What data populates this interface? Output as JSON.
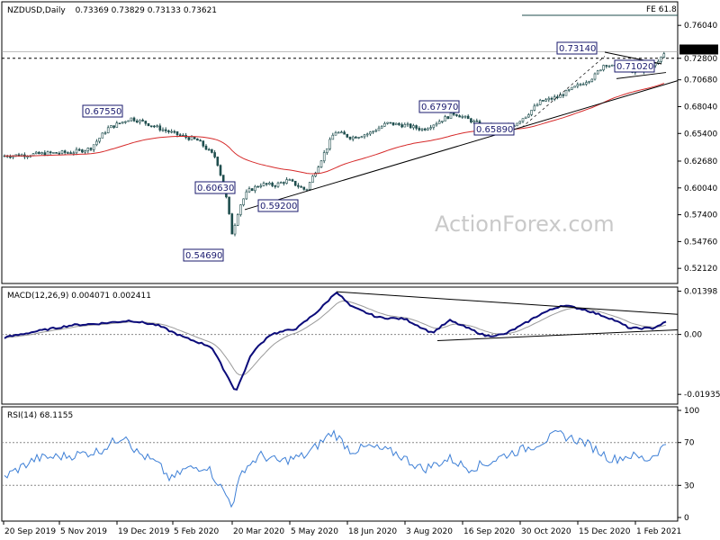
{
  "header": {
    "symbol": "NZDUSD,Daily",
    "ohlc": "0.73369 0.73829 0.73133 0.73621"
  },
  "fe_label": "FE 61.8",
  "watermark": "ActionForex.com",
  "colors": {
    "candle": "#1f4e4e",
    "ema": "#d62a2a",
    "macd": "#0b0b7a",
    "signal": "#9a9a9a",
    "rsi": "#3d7fd6",
    "trendline": "#000000",
    "grid": "#cccccc"
  },
  "x_ticks": [
    "20 Sep 2019",
    "5 Nov 2019",
    "19 Dec 2019",
    "5 Feb 2020",
    "20 Mar 2020",
    "5 May 2020",
    "18 Jun 2020",
    "3 Aug 2020",
    "16 Sep 2020",
    "30 Oct 2020",
    "15 Dec 2020",
    "1 Feb 2021"
  ],
  "chart_data": [
    {
      "type": "candlestick",
      "title": "NZDUSD,Daily",
      "ylim": [
        0.5063,
        0.7836
      ],
      "y_ticks": [
        "0.76040",
        "0.72800",
        "0.70680",
        "0.68040",
        "0.65400",
        "0.62680",
        "0.60040",
        "0.57400",
        "0.54760",
        "0.52120"
      ],
      "current_price": "0.73621",
      "current_price_color": "#000000",
      "level_line": "0.72800",
      "annotations": [
        {
          "label": "0.67550",
          "date": "Dec 2019"
        },
        {
          "label": "0.60630",
          "date": "Mar 2020"
        },
        {
          "label": "0.54690",
          "date": "Mar 2020"
        },
        {
          "label": "0.59200",
          "date": "Apr 2020"
        },
        {
          "label": "0.67970",
          "date": "Aug 2020"
        },
        {
          "label": "0.65890",
          "date": "Sep 2020"
        },
        {
          "label": "0.73140",
          "date": "Dec 2020"
        },
        {
          "label": "0.71020",
          "date": "Jan 2021"
        }
      ]
    },
    {
      "type": "line",
      "title": "MACD(12,26,9) 0.004071 0.002411",
      "ylim": [
        -0.0225,
        0.0153
      ],
      "y_ticks": [
        "0.01398",
        "0.00",
        "-0.019352"
      ]
    },
    {
      "type": "line",
      "title": "RSI(14) 68.1155",
      "ylim": [
        0,
        100
      ],
      "y_ticks": [
        "100",
        "70",
        "30",
        "0"
      ],
      "levels": [
        70,
        30
      ],
      "last_value": 68.1155
    }
  ]
}
